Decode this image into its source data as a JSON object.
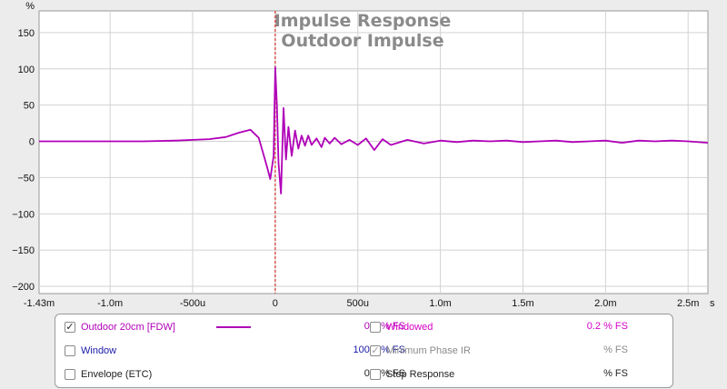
{
  "chart_data": {
    "type": "line",
    "title": "Impulse Response",
    "subtitle": "Outdoor Impulse",
    "ylabel": "%",
    "xlabel": "s",
    "xlim": [
      -0.00143,
      0.00262
    ],
    "ylim": [
      -210,
      180
    ],
    "grid": true,
    "x_ticks": [
      {
        "v": -0.00143,
        "label": "-1.43m"
      },
      {
        "v": -0.001,
        "label": "-1.0m"
      },
      {
        "v": -0.0005,
        "label": "-500u"
      },
      {
        "v": 0,
        "label": "0"
      },
      {
        "v": 0.0005,
        "label": "500u"
      },
      {
        "v": 0.001,
        "label": "1.0m"
      },
      {
        "v": 0.0015,
        "label": "1.5m"
      },
      {
        "v": 0.002,
        "label": "2.0m"
      },
      {
        "v": 0.0025,
        "label": "2.5m"
      }
    ],
    "x_unit_label": "s",
    "y_ticks": [
      150,
      100,
      50,
      0,
      -50,
      -100,
      -150,
      -200
    ],
    "y_unit_label": "%",
    "marker_x": 0,
    "series": [
      {
        "name": "Outdoor 20cm [FDW]",
        "color": "#b000b8",
        "x": [
          -0.00143,
          -0.0012,
          -0.001,
          -0.0008,
          -0.0006,
          -0.0004,
          -0.0003,
          -0.00022,
          -0.00015,
          -0.0001,
          -5e-05,
          -3e-05,
          -1e-05,
          0,
          1e-05,
          2e-05,
          3.5e-05,
          5e-05,
          6.5e-05,
          8e-05,
          0.0001,
          0.00012,
          0.00014,
          0.00016,
          0.00018,
          0.0002,
          0.00022,
          0.00025,
          0.00028,
          0.0003,
          0.00033,
          0.00036,
          0.0004,
          0.00045,
          0.0005,
          0.00055,
          0.0006,
          0.00065,
          0.0007,
          0.0008,
          0.0009,
          0.001,
          0.0011,
          0.0012,
          0.0013,
          0.0014,
          0.0015,
          0.0016,
          0.0017,
          0.0018,
          0.0019,
          0.002,
          0.0021,
          0.0022,
          0.0023,
          0.0024,
          0.0025,
          0.00262
        ],
        "y": [
          0,
          0,
          0,
          0,
          1,
          3,
          6,
          12,
          16,
          5,
          -35,
          -52,
          -20,
          102,
          50,
          -30,
          -72,
          46,
          -25,
          20,
          -20,
          15,
          -10,
          8,
          -6,
          8,
          -5,
          4,
          -8,
          5,
          -3,
          5,
          -4,
          2,
          -5,
          4,
          -12,
          3,
          -5,
          2,
          -3,
          1,
          -1,
          1,
          0,
          1,
          -1,
          0,
          1,
          -1,
          0,
          1,
          -2,
          1,
          0,
          1,
          0,
          -2
        ]
      }
    ]
  },
  "legend": {
    "items": [
      {
        "checked": true,
        "check_glyph": "✓",
        "label": "Outdoor 20cm [FDW]",
        "color": "#b000b8",
        "value": "0.1 % FS",
        "show_swatch": true
      },
      {
        "checked": false,
        "check_glyph": "",
        "label": "Window",
        "color": "#1a1aa8",
        "value": "100.0 % FS",
        "show_swatch": false
      },
      {
        "checked": false,
        "check_glyph": "",
        "label": "Envelope (ETC)",
        "color": "#222222",
        "value": "0.2 % FS",
        "show_swatch": false
      },
      {
        "checked": false,
        "check_glyph": "",
        "label": "Windowed",
        "color": "#d600c8",
        "value": "0.2 % FS",
        "show_swatch": false
      },
      {
        "checked": true,
        "check_glyph": "✓",
        "label": "Minimum Phase IR",
        "color": "#8a8a8a",
        "value": "% FS",
        "show_swatch": false
      },
      {
        "checked": false,
        "check_glyph": "",
        "label": "Step Response",
        "color": "#222222",
        "value": "% FS",
        "show_swatch": false
      }
    ]
  }
}
